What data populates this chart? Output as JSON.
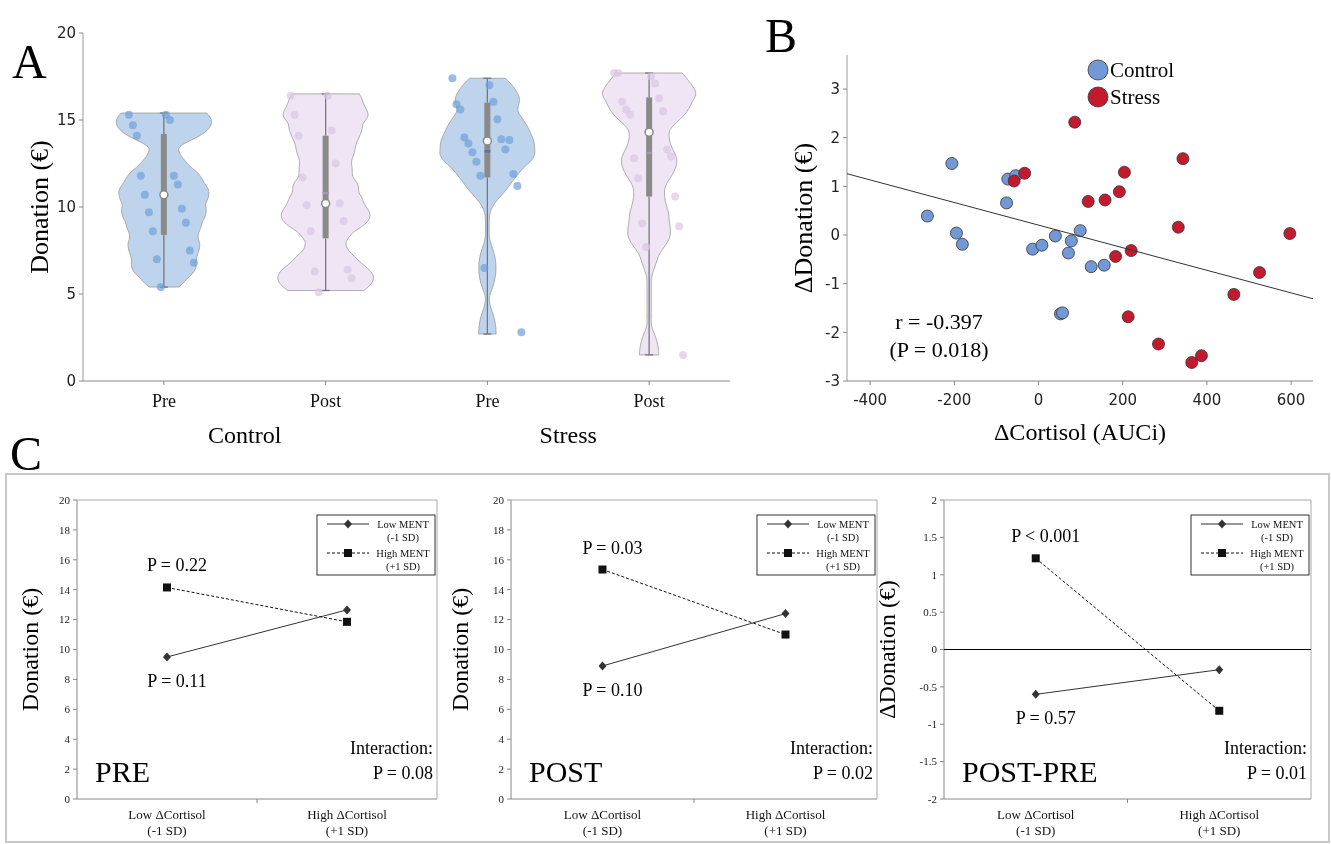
{
  "chart_data": [
    {
      "type": "box",
      "title": "A",
      "ylabel": "Donation (€)",
      "categories": [
        "Pre",
        "Post",
        "Pre",
        "Post"
      ],
      "ylim": [
        0,
        20
      ],
      "yticks": [
        0,
        5,
        10,
        15,
        20
      ],
      "grid": false,
      "annotations": [
        "Control",
        "Stress"
      ],
      "boxes": [
        {
          "low": 5.4,
          "q1": 8.4,
          "median": 10.7,
          "q3": 14.2,
          "high": 15.4,
          "mean": 10.8
        },
        {
          "low": 5.2,
          "q1": 8.2,
          "median": 10.2,
          "q3": 14.1,
          "high": 16.5,
          "mean": 10.8
        },
        {
          "low": 2.7,
          "q1": 11.7,
          "median": 13.8,
          "q3": 16.0,
          "high": 17.4,
          "mean": 13.2
        },
        {
          "low": 1.5,
          "q1": 10.6,
          "median": 14.3,
          "q3": 16.3,
          "high": 17.7,
          "mean": 13.1
        }
      ],
      "series": [
        {
          "type": "scatter",
          "colors": [
            "#6f9fd8",
            "#dcc6e6",
            "#6f9fd8",
            "#dcc6e6"
          ],
          "values": [
            15.3,
            16.4,
            17.4,
            17.7
          ]
        },
        {
          "type": "scatter",
          "colors": [
            "#6f9fd8",
            "#dcc6e6",
            "#6f9fd8",
            "#dcc6e6"
          ],
          "values": [
            15.3,
            16.4,
            17.0,
            17.5
          ]
        },
        {
          "type": "scatter",
          "colors": [
            "#6f9fd8",
            "#dcc6e6",
            "#6f9fd8",
            "#dcc6e6"
          ],
          "values": [
            14.7,
            15.3,
            15.9,
            17.7
          ]
        },
        {
          "type": "scatter",
          "colors": [
            "#6f9fd8",
            "#dcc6e6",
            "#6f9fd8",
            "#dcc6e6"
          ],
          "values": [
            15.0,
            14.4,
            16.05,
            17.1
          ]
        },
        {
          "type": "scatter",
          "colors": [
            "#6f9fd8",
            "#dcc6e6",
            "#6f9fd8",
            "#dcc6e6"
          ],
          "values": [
            14.1,
            14.1,
            15.6,
            16.05
          ]
        },
        {
          "type": "scatter",
          "colors": [
            "#6f9fd8",
            "#dcc6e6",
            "#6f9fd8",
            "#dcc6e6"
          ],
          "values": [
            11.8,
            12.5,
            15.05,
            16.25
          ]
        },
        {
          "type": "scatter",
          "colors": [
            "#6f9fd8",
            "#dcc6e6",
            "#6f9fd8",
            "#dcc6e6"
          ],
          "values": [
            11.8,
            11.7,
            14.0,
            15.6
          ]
        },
        {
          "type": "scatter",
          "colors": [
            "#6f9fd8",
            "#dcc6e6",
            "#6f9fd8",
            "#dcc6e6"
          ],
          "values": [
            11.3,
            10.2,
            13.9,
            15.5
          ]
        },
        {
          "type": "scatter",
          "colors": [
            "#6f9fd8",
            "#dcc6e6",
            "#6f9fd8",
            "#dcc6e6"
          ],
          "values": [
            10.7,
            10.1,
            13.65,
            15.3
          ]
        },
        {
          "type": "scatter",
          "colors": [
            "#6f9fd8",
            "#dcc6e6",
            "#6f9fd8",
            "#dcc6e6"
          ],
          "values": [
            9.9,
            9.2,
            13.3,
            13.3
          ]
        },
        {
          "type": "scatter",
          "colors": [
            "#6f9fd8",
            "#dcc6e6",
            "#6f9fd8",
            "#dcc6e6"
          ],
          "values": [
            9.7,
            8.6,
            13.15,
            12.8
          ]
        },
        {
          "type": "scatter",
          "colors": [
            "#6f9fd8",
            "#dcc6e6",
            "#6f9fd8",
            "#dcc6e6"
          ],
          "values": [
            9.1,
            6.4,
            13.85,
            12.9
          ]
        },
        {
          "type": "scatter",
          "colors": [
            "#6f9fd8",
            "#dcc6e6",
            "#6f9fd8",
            "#dcc6e6"
          ],
          "values": [
            8.6,
            6.3,
            12.6,
            11.65
          ]
        },
        {
          "type": "scatter",
          "colors": [
            "#6f9fd8",
            "#dcc6e6",
            "#6f9fd8",
            "#dcc6e6"
          ],
          "values": [
            7.5,
            5.9,
            11.9,
            10.6
          ]
        },
        {
          "type": "scatter",
          "colors": [
            "#6f9fd8",
            "#dcc6e6",
            "#6f9fd8",
            "#dcc6e6"
          ],
          "values": [
            7.0,
            5.1,
            11.8,
            9.05
          ]
        },
        {
          "type": "scatter",
          "colors": [
            "#6f9fd8",
            "#dcc6e6",
            "#6f9fd8",
            "#dcc6e6"
          ],
          "values": [
            6.8,
            null,
            11.2,
            8.9
          ]
        },
        {
          "type": "scatter",
          "colors": [
            "#6f9fd8",
            "#dcc6e6",
            "#6f9fd8",
            "#dcc6e6"
          ],
          "values": [
            5.4,
            null,
            6.5,
            7.7
          ]
        },
        {
          "type": "scatter",
          "colors": [
            "#6f9fd8",
            "#dcc6e6",
            "#6f9fd8",
            "#dcc6e6"
          ],
          "values": [
            null,
            null,
            2.8,
            1.5
          ]
        }
      ]
    },
    {
      "type": "scatter",
      "title": "B",
      "xlabel": "ΔCortisol (AUCi)",
      "ylabel": "ΔDonation (€)",
      "xlim": [
        -455,
        652
      ],
      "xticks": [
        -400,
        -200,
        0,
        200,
        400,
        600
      ],
      "ylim": [
        -3,
        3.7
      ],
      "yticks": [
        -3,
        -2,
        -1,
        0,
        1,
        2,
        3
      ],
      "legend": "top right",
      "grid": false,
      "annotations": [
        "r = -0.397",
        "(P = 0.018)"
      ],
      "series": [
        {
          "name": "Control",
          "color": "#7299d6",
          "x": [
            -264,
            -206,
            -195,
            -181,
            -76,
            -73,
            -54,
            -14,
            8,
            40,
            78,
            99,
            71,
            125,
            156,
            52,
            57
          ],
          "values": [
            0.39,
            1.47,
            0.04,
            -0.19,
            0.66,
            1.15,
            1.22,
            -0.29,
            -0.21,
            -0.02,
            -0.12,
            0.09,
            -0.37,
            -0.65,
            -0.62,
            -1.62,
            -1.6
          ]
        },
        {
          "name": "Stress",
          "color": "#c41a2e",
          "x": [
            86,
            -33,
            -58,
            118,
            158,
            192,
            204,
            343,
            332,
            597,
            183,
            220,
            213,
            285,
            364,
            387,
            464,
            525
          ],
          "values": [
            2.32,
            1.27,
            1.11,
            0.69,
            0.72,
            0.89,
            1.29,
            1.57,
            0.16,
            0.03,
            -0.44,
            -0.32,
            -1.68,
            -2.24,
            -2.62,
            -2.48,
            -1.22,
            -0.77
          ]
        },
        {
          "type": "line",
          "color": "#333333",
          "x": [
            -455,
            652
          ],
          "values": [
            1.26,
            -1.31
          ]
        }
      ]
    },
    {
      "type": "line",
      "title": "C",
      "ylabel": "Donation (€)",
      "categories": [
        "Low ΔCortisol\n(-1 SD)",
        "High ΔCortisol\n(+1 SD)"
      ],
      "ylim": [
        0,
        20
      ],
      "yticks": [
        0,
        2,
        4,
        6,
        8,
        10,
        12,
        14,
        16,
        18,
        20
      ],
      "legend": "top right",
      "grid": false,
      "annotations": [
        "P = 0.22",
        "P = 0.11",
        "PRE",
        "Interaction:",
        "P = 0.08"
      ],
      "series": [
        {
          "name": "Low MENT\n(-1 SD)",
          "color": "#333333",
          "marker": "diamond",
          "line_style": "solid",
          "values": [
            9.5,
            12.65
          ]
        },
        {
          "name": "High MENT\n(+1 SD)",
          "color": "#111111",
          "marker": "square",
          "line_style": "dashed",
          "values": [
            14.15,
            11.85
          ]
        }
      ]
    },
    {
      "type": "line",
      "ylabel": "Donation (€)",
      "categories": [
        "Low ΔCortisol\n(-1 SD)",
        "High ΔCortisol\n(+1 SD)"
      ],
      "ylim": [
        0,
        20
      ],
      "yticks": [
        0,
        2,
        4,
        6,
        8,
        10,
        12,
        14,
        16,
        18,
        20
      ],
      "legend": "top right",
      "grid": false,
      "annotations": [
        "P = 0.03",
        "P = 0.10",
        "POST",
        "Interaction:",
        "P = 0.02"
      ],
      "series": [
        {
          "name": "Low MENT\n(-1 SD)",
          "color": "#333333",
          "marker": "diamond",
          "line_style": "solid",
          "values": [
            8.9,
            12.4
          ]
        },
        {
          "name": "High MENT\n(+1 SD)",
          "color": "#111111",
          "marker": "square",
          "line_style": "dashed",
          "values": [
            15.35,
            11.0
          ]
        }
      ]
    },
    {
      "type": "line",
      "ylabel": "ΔDonation (€)",
      "categories": [
        "Low ΔCortisol\n(-1 SD)",
        "High ΔCortisol\n(+1 SD)"
      ],
      "ylim": [
        -2,
        2
      ],
      "yticks": [
        -2,
        -1.5,
        -1,
        -0.5,
        0,
        0.5,
        1,
        1.5,
        2
      ],
      "legend": "top right",
      "grid": false,
      "ref_lines": [
        {
          "axis": "y",
          "value": 0,
          "color": "#000000"
        }
      ],
      "annotations": [
        "P < 0.001",
        "P = 0.57",
        "POST-PRE",
        "Interaction:",
        "P = 0.01"
      ],
      "series": [
        {
          "name": "Low MENT\n(-1 SD)",
          "color": "#333333",
          "marker": "diamond",
          "line_style": "solid",
          "values": [
            -0.6,
            -0.27
          ]
        },
        {
          "name": "High MENT\n(+1 SD)",
          "color": "#111111",
          "marker": "square",
          "line_style": "dashed",
          "values": [
            1.22,
            -0.82
          ]
        }
      ]
    }
  ]
}
